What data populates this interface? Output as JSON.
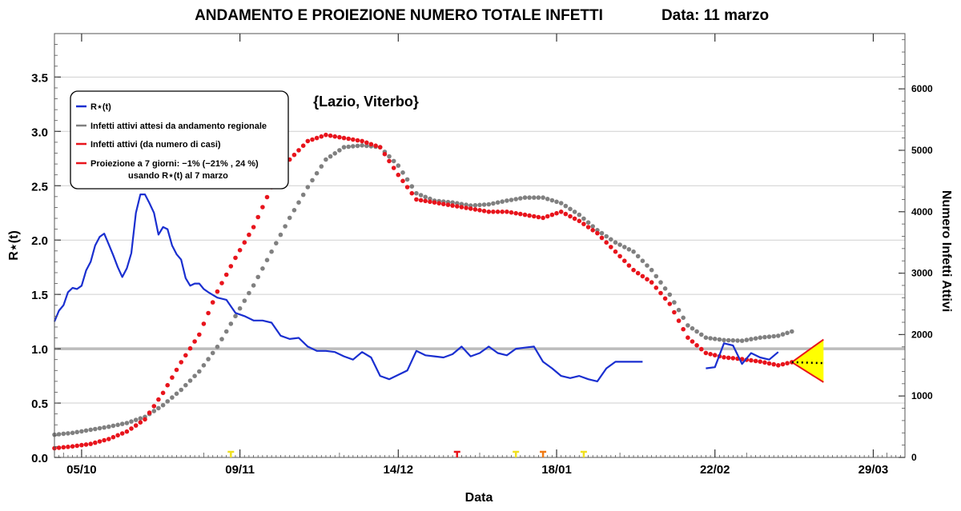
{
  "chart_data": {
    "type": "line",
    "title": "ANDAMENTO E PROIEZIONE NUMERO TOTALE INFETTI",
    "date_label": "Data: 11 marzo",
    "annotation": "{Lazio, Viterbo}",
    "xlabel": "Data",
    "ylabel_left": "R⋆(t)",
    "ylabel_right": "Numero Infetti Attivi",
    "x_ticks": [
      "05/10",
      "09/11",
      "14/12",
      "18/01",
      "22/02",
      "29/03"
    ],
    "x_range": [
      "2020-09-29",
      "2021-04-05"
    ],
    "ylim_left": [
      0,
      3.9
    ],
    "yticks_left": [
      "0.0",
      "0.5",
      "1.0",
      "1.5",
      "2.0",
      "2.5",
      "3.0",
      "3.5"
    ],
    "ylim_right": [
      0,
      6900
    ],
    "yticks_right": [
      "0",
      "1000",
      "2000",
      "3000",
      "4000",
      "5000",
      "6000"
    ],
    "reference_line_R": 1.0,
    "grid": "horizontal",
    "legend_position": "top-left",
    "legend": [
      {
        "label": "R⋆(t)",
        "color": "#1a2fd0"
      },
      {
        "label": "Infetti attivi attesi da andamento regionale",
        "color": "#808080"
      },
      {
        "label": "Infetti attivi (da numero di casi)",
        "color": "#e8141c"
      },
      {
        "label": "Proiezione a 7 giorni: −1% (−21% , 24 %)",
        "label2": "usando R⋆(t) al 7 marzo",
        "color": "#e8141c"
      }
    ],
    "series": [
      {
        "name": "R⋆(t)",
        "axis": "left",
        "color": "#1a2fd0",
        "segments": [
          {
            "x": [
              "2020-09-29",
              "2020-09-30",
              "2020-10-01",
              "2020-10-02",
              "2020-10-03",
              "2020-10-04",
              "2020-10-05",
              "2020-10-06",
              "2020-10-07",
              "2020-10-08",
              "2020-10-09",
              "2020-10-10",
              "2020-10-11",
              "2020-10-12",
              "2020-10-13",
              "2020-10-14",
              "2020-10-15",
              "2020-10-16",
              "2020-10-17",
              "2020-10-18",
              "2020-10-19",
              "2020-10-20",
              "2020-10-21",
              "2020-10-22",
              "2020-10-23",
              "2020-10-24",
              "2020-10-25",
              "2020-10-26",
              "2020-10-27",
              "2020-10-28",
              "2020-10-29",
              "2020-10-30",
              "2020-10-31",
              "2020-11-01",
              "2020-11-02",
              "2020-11-04",
              "2020-11-06",
              "2020-11-08",
              "2020-11-10",
              "2020-11-12",
              "2020-11-14",
              "2020-11-16",
              "2020-11-18",
              "2020-11-20",
              "2020-11-22",
              "2020-11-24",
              "2020-11-26",
              "2020-11-28",
              "2020-11-30",
              "2020-12-02",
              "2020-12-04",
              "2020-12-06",
              "2020-12-08",
              "2020-12-10",
              "2020-12-12",
              "2020-12-14",
              "2020-12-16",
              "2020-12-18",
              "2020-12-20",
              "2020-12-22",
              "2020-12-24",
              "2020-12-26",
              "2020-12-28",
              "2020-12-30",
              "2021-01-01",
              "2021-01-03",
              "2021-01-05",
              "2021-01-07",
              "2021-01-09",
              "2021-01-11",
              "2021-01-13",
              "2021-01-15",
              "2021-01-17",
              "2021-01-19",
              "2021-01-21",
              "2021-01-23",
              "2021-01-25",
              "2021-01-27",
              "2021-01-29",
              "2021-01-31",
              "2021-02-02",
              "2021-02-04",
              "2021-02-06"
            ],
            "y": [
              1.25,
              1.35,
              1.4,
              1.52,
              1.56,
              1.55,
              1.58,
              1.72,
              1.8,
              1.95,
              2.03,
              2.06,
              1.96,
              1.86,
              1.75,
              1.66,
              1.74,
              1.88,
              2.25,
              2.42,
              2.42,
              2.34,
              2.25,
              2.05,
              2.12,
              2.1,
              1.95,
              1.87,
              1.82,
              1.65,
              1.58,
              1.6,
              1.6,
              1.55,
              1.52,
              1.47,
              1.45,
              1.33,
              1.3,
              1.26,
              1.26,
              1.24,
              1.12,
              1.09,
              1.1,
              1.02,
              0.98,
              0.98,
              0.97,
              0.93,
              0.9,
              0.97,
              0.92,
              0.75,
              0.72,
              0.76,
              0.8,
              0.98,
              0.94,
              0.93,
              0.92,
              0.95,
              1.02,
              0.93,
              0.96,
              1.02,
              0.96,
              0.94,
              1.0,
              1.01,
              1.02,
              0.88,
              0.82,
              0.75,
              0.73,
              0.75,
              0.72,
              0.7,
              0.82,
              0.88,
              0.88,
              0.88,
              0.88
            ]
          },
          {
            "x": [
              "2021-02-20",
              "2021-02-22",
              "2021-02-24",
              "2021-02-26",
              "2021-02-28",
              "2021-03-02",
              "2021-03-04",
              "2021-03-06",
              "2021-03-08"
            ],
            "y": [
              0.82,
              0.83,
              1.05,
              1.03,
              0.86,
              0.96,
              0.92,
              0.9,
              0.97
            ]
          }
        ]
      },
      {
        "name": "Infetti attivi attesi da andamento regionale",
        "axis": "right",
        "color": "#808080",
        "x": [
          "2020-09-29",
          "2020-10-03",
          "2020-10-07",
          "2020-10-11",
          "2020-10-15",
          "2020-10-19",
          "2020-10-23",
          "2020-10-27",
          "2020-10-31",
          "2020-11-04",
          "2020-11-08",
          "2020-11-12",
          "2020-11-16",
          "2020-11-20",
          "2020-11-24",
          "2020-11-28",
          "2020-12-02",
          "2020-12-06",
          "2020-12-10",
          "2020-12-14",
          "2020-12-18",
          "2020-12-22",
          "2020-12-26",
          "2020-12-30",
          "2021-01-03",
          "2021-01-07",
          "2021-01-11",
          "2021-01-15",
          "2021-01-19",
          "2021-01-23",
          "2021-01-27",
          "2021-01-31",
          "2021-02-04",
          "2021-02-08",
          "2021-02-12",
          "2021-02-16",
          "2021-02-20",
          "2021-02-24",
          "2021-02-28",
          "2021-03-04",
          "2021-03-08",
          "2021-03-11"
        ],
        "y": [
          370,
          400,
          450,
          500,
          560,
          660,
          850,
          1100,
          1400,
          1800,
          2300,
          2800,
          3350,
          3900,
          4400,
          4850,
          5050,
          5080,
          5050,
          4750,
          4300,
          4180,
          4150,
          4100,
          4120,
          4180,
          4230,
          4230,
          4140,
          3950,
          3700,
          3500,
          3350,
          3050,
          2650,
          2150,
          1950,
          1910,
          1900,
          1950,
          1980,
          2050
        ]
      },
      {
        "name": "Infetti attivi (da numero di casi)",
        "axis": "right",
        "color": "#e8141c",
        "x": [
          "2020-09-29",
          "2020-10-03",
          "2020-10-07",
          "2020-10-11",
          "2020-10-15",
          "2020-10-19",
          "2020-10-23",
          "2020-10-27",
          "2020-10-31",
          "2020-11-04",
          "2020-11-08",
          "2020-11-12",
          "2020-11-16",
          "2020-11-20",
          "2020-11-24",
          "2020-11-28",
          "2020-12-02",
          "2020-12-06",
          "2020-12-10",
          "2020-12-14",
          "2020-12-18",
          "2020-12-22",
          "2020-12-26",
          "2020-12-30",
          "2021-01-03",
          "2021-01-07",
          "2021-01-11",
          "2021-01-15",
          "2021-01-19",
          "2021-01-23",
          "2021-01-27",
          "2021-01-31",
          "2021-02-04",
          "2021-02-08",
          "2021-02-12",
          "2021-02-16",
          "2021-02-20",
          "2021-02-24",
          "2021-02-28",
          "2021-03-04",
          "2021-03-08",
          "2021-03-11"
        ],
        "y": [
          150,
          180,
          220,
          300,
          420,
          620,
          1050,
          1550,
          2000,
          2700,
          3250,
          3750,
          4400,
          4850,
          5150,
          5250,
          5200,
          5150,
          5050,
          4600,
          4200,
          4150,
          4100,
          4050,
          4000,
          4000,
          3950,
          3900,
          4000,
          3850,
          3650,
          3350,
          3050,
          2850,
          2500,
          1950,
          1700,
          1630,
          1600,
          1560,
          1500,
          1550
        ]
      },
      {
        "name": "Proiezione a 7 giorni: −1% (−21% , 24 %)",
        "axis": "right",
        "color": "#e8141c",
        "fill": "#ffff00",
        "x": [
          "2021-03-11",
          "2021-03-18"
        ],
        "center": [
          1550,
          1535
        ],
        "upper": [
          1550,
          1920
        ],
        "lower": [
          1550,
          1225
        ]
      }
    ],
    "date_markers": [
      {
        "x": "2020-11-07",
        "color": "#f0e020"
      },
      {
        "x": "2020-12-27",
        "color": "#e8141c"
      },
      {
        "x": "2021-01-09",
        "color": "#f0e020"
      },
      {
        "x": "2021-01-15",
        "color": "#f07a14"
      },
      {
        "x": "2021-01-24",
        "color": "#f0e020"
      }
    ]
  }
}
